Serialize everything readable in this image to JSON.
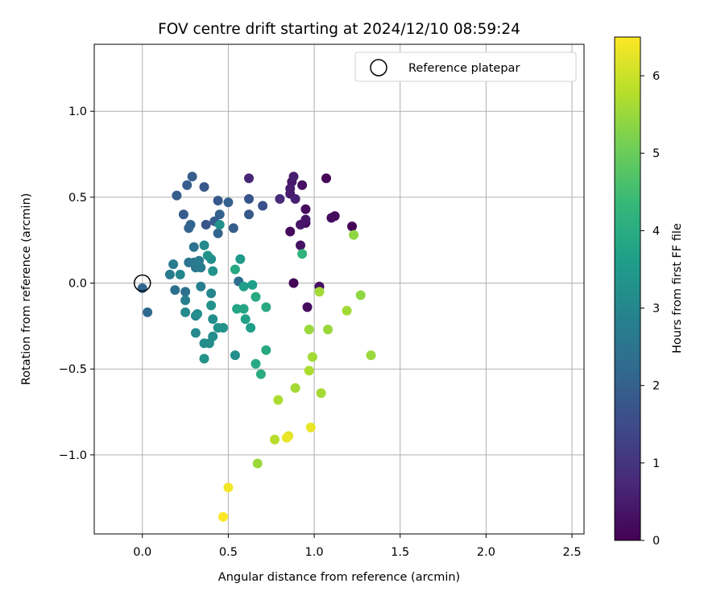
{
  "chart_data": {
    "type": "scatter",
    "title": "FOV centre drift starting at 2024/12/10 08:59:24",
    "xlabel": "Angular distance from reference (arcmin)",
    "ylabel": "Rotation from reference (arcmin)",
    "xlim": [
      -0.28,
      2.57
    ],
    "ylim": [
      -1.46,
      1.39
    ],
    "xticks": [
      0.0,
      0.5,
      1.0,
      1.5,
      2.0,
      2.5
    ],
    "yticks": [
      -1.0,
      -0.5,
      0.0,
      0.5,
      1.0
    ],
    "xtick_labels": [
      "0.0",
      "0.5",
      "1.0",
      "1.5",
      "2.0",
      "2.5"
    ],
    "ytick_labels": [
      "−1.0",
      "−0.5",
      "0.0",
      "0.5",
      "1.0"
    ],
    "grid": true,
    "legend": {
      "position": "top-right",
      "label": "Reference platepar",
      "marker": "open-circle"
    },
    "reference_point": {
      "x": 0.0,
      "y": 0.0
    },
    "colorbar": {
      "label": "Hours from first FF file",
      "colormap": "viridis",
      "range": [
        0,
        6.5
      ],
      "ticks": [
        0,
        1,
        2,
        3,
        4,
        5,
        6
      ],
      "tick_labels": [
        "0",
        "1",
        "2",
        "3",
        "4",
        "5",
        "6"
      ]
    },
    "points": [
      {
        "x": 1.07,
        "y": 0.61,
        "t": 0.1
      },
      {
        "x": 0.87,
        "y": 0.59,
        "t": 0.4
      },
      {
        "x": 0.86,
        "y": 0.52,
        "t": 0.5
      },
      {
        "x": 0.62,
        "y": 0.61,
        "t": 0.7
      },
      {
        "x": 0.88,
        "y": 0.62,
        "t": 0.5
      },
      {
        "x": 0.93,
        "y": 0.57,
        "t": 0.3
      },
      {
        "x": 0.86,
        "y": 0.55,
        "t": 0.5
      },
      {
        "x": 0.8,
        "y": 0.49,
        "t": 0.8
      },
      {
        "x": 0.89,
        "y": 0.49,
        "t": 0.6
      },
      {
        "x": 0.95,
        "y": 0.43,
        "t": 0.2
      },
      {
        "x": 0.92,
        "y": 0.34,
        "t": 0.4
      },
      {
        "x": 0.95,
        "y": 0.37,
        "t": 0.4
      },
      {
        "x": 0.95,
        "y": 0.35,
        "t": 0.1
      },
      {
        "x": 1.1,
        "y": 0.38,
        "t": 0.2
      },
      {
        "x": 1.12,
        "y": 0.39,
        "t": 0.2
      },
      {
        "x": 1.22,
        "y": 0.33,
        "t": 0.1
      },
      {
        "x": 0.86,
        "y": 0.3,
        "t": 0.2
      },
      {
        "x": 0.92,
        "y": 0.22,
        "t": 0.3
      },
      {
        "x": 0.88,
        "y": 0.0,
        "t": 0.05
      },
      {
        "x": 1.03,
        "y": -0.02,
        "t": 0.3
      },
      {
        "x": 0.96,
        "y": -0.14,
        "t": 0.2
      },
      {
        "x": 0.7,
        "y": 0.45,
        "t": 1.6
      },
      {
        "x": 0.62,
        "y": 0.49,
        "t": 1.7
      },
      {
        "x": 0.62,
        "y": 0.4,
        "t": 1.8
      },
      {
        "x": 0.53,
        "y": 0.32,
        "t": 1.9
      },
      {
        "x": 0.5,
        "y": 0.47,
        "t": 2.0
      },
      {
        "x": 0.44,
        "y": 0.48,
        "t": 1.8
      },
      {
        "x": 0.36,
        "y": 0.56,
        "t": 1.8
      },
      {
        "x": 0.29,
        "y": 0.62,
        "t": 1.9
      },
      {
        "x": 0.26,
        "y": 0.57,
        "t": 1.9
      },
      {
        "x": 0.2,
        "y": 0.51,
        "t": 1.9
      },
      {
        "x": 0.24,
        "y": 0.4,
        "t": 1.9
      },
      {
        "x": 0.37,
        "y": 0.34,
        "t": 1.7
      },
      {
        "x": 0.42,
        "y": 0.36,
        "t": 1.9
      },
      {
        "x": 0.45,
        "y": 0.4,
        "t": 2.0
      },
      {
        "x": 0.44,
        "y": 0.29,
        "t": 2.1
      },
      {
        "x": 0.27,
        "y": 0.32,
        "t": 2.1
      },
      {
        "x": 0.28,
        "y": 0.34,
        "t": 2.1
      },
      {
        "x": 0.0,
        "y": -0.03,
        "t": 2.1
      },
      {
        "x": 0.03,
        "y": -0.17,
        "t": 2.2
      },
      {
        "x": 0.45,
        "y": 0.34,
        "t": 3.3
      },
      {
        "x": 0.3,
        "y": 0.21,
        "t": 2.5
      },
      {
        "x": 0.36,
        "y": 0.22,
        "t": 3.1
      },
      {
        "x": 0.38,
        "y": 0.16,
        "t": 3.3
      },
      {
        "x": 0.4,
        "y": 0.14,
        "t": 3.2
      },
      {
        "x": 0.3,
        "y": 0.12,
        "t": 2.6
      },
      {
        "x": 0.27,
        "y": 0.12,
        "t": 2.5
      },
      {
        "x": 0.33,
        "y": 0.13,
        "t": 2.7
      },
      {
        "x": 0.18,
        "y": 0.11,
        "t": 2.7
      },
      {
        "x": 0.31,
        "y": 0.09,
        "t": 2.6
      },
      {
        "x": 0.34,
        "y": 0.09,
        "t": 2.7
      },
      {
        "x": 0.16,
        "y": 0.05,
        "t": 2.7
      },
      {
        "x": 0.22,
        "y": 0.05,
        "t": 3.0
      },
      {
        "x": 0.41,
        "y": 0.07,
        "t": 3.3
      },
      {
        "x": 0.19,
        "y": -0.04,
        "t": 2.4
      },
      {
        "x": 0.25,
        "y": -0.05,
        "t": 2.4
      },
      {
        "x": 0.34,
        "y": -0.02,
        "t": 2.8
      },
      {
        "x": 0.4,
        "y": -0.06,
        "t": 3.0
      },
      {
        "x": 0.25,
        "y": -0.1,
        "t": 2.8
      },
      {
        "x": 0.4,
        "y": -0.13,
        "t": 3.3
      },
      {
        "x": 0.25,
        "y": -0.17,
        "t": 3.1
      },
      {
        "x": 0.31,
        "y": -0.19,
        "t": 3.0
      },
      {
        "x": 0.32,
        "y": -0.18,
        "t": 3.2
      },
      {
        "x": 0.41,
        "y": -0.21,
        "t": 3.2
      },
      {
        "x": 0.44,
        "y": -0.26,
        "t": 3.3
      },
      {
        "x": 0.47,
        "y": -0.26,
        "t": 3.3
      },
      {
        "x": 0.31,
        "y": -0.29,
        "t": 3.1
      },
      {
        "x": 0.41,
        "y": -0.31,
        "t": 3.2
      },
      {
        "x": 0.36,
        "y": -0.35,
        "t": 3.2
      },
      {
        "x": 0.39,
        "y": -0.35,
        "t": 3.2
      },
      {
        "x": 0.36,
        "y": -0.44,
        "t": 3.3
      },
      {
        "x": 0.54,
        "y": -0.42,
        "t": 3.2
      },
      {
        "x": 0.57,
        "y": 0.14,
        "t": 3.5
      },
      {
        "x": 0.54,
        "y": 0.08,
        "t": 3.9
      },
      {
        "x": 0.56,
        "y": 0.01,
        "t": 2.3
      },
      {
        "x": 0.59,
        "y": -0.02,
        "t": 3.6
      },
      {
        "x": 0.64,
        "y": -0.01,
        "t": 3.6
      },
      {
        "x": 0.66,
        "y": -0.08,
        "t": 3.9
      },
      {
        "x": 0.55,
        "y": -0.15,
        "t": 3.8
      },
      {
        "x": 0.59,
        "y": -0.15,
        "t": 3.8
      },
      {
        "x": 0.72,
        "y": -0.14,
        "t": 3.9
      },
      {
        "x": 0.6,
        "y": -0.21,
        "t": 3.7
      },
      {
        "x": 0.63,
        "y": -0.26,
        "t": 3.6
      },
      {
        "x": 0.72,
        "y": -0.39,
        "t": 3.9
      },
      {
        "x": 0.66,
        "y": -0.47,
        "t": 3.9
      },
      {
        "x": 0.69,
        "y": -0.53,
        "t": 4.0
      },
      {
        "x": 0.93,
        "y": 0.17,
        "t": 4.2
      },
      {
        "x": 1.23,
        "y": 0.28,
        "t": 5.4
      },
      {
        "x": 1.03,
        "y": -0.05,
        "t": 5.6
      },
      {
        "x": 1.27,
        "y": -0.07,
        "t": 5.4
      },
      {
        "x": 1.19,
        "y": -0.16,
        "t": 5.6
      },
      {
        "x": 0.97,
        "y": -0.27,
        "t": 5.5
      },
      {
        "x": 1.08,
        "y": -0.27,
        "t": 5.5
      },
      {
        "x": 1.33,
        "y": -0.42,
        "t": 5.5
      },
      {
        "x": 0.99,
        "y": -0.43,
        "t": 5.6
      },
      {
        "x": 0.97,
        "y": -0.51,
        "t": 5.7
      },
      {
        "x": 0.89,
        "y": -0.61,
        "t": 5.6
      },
      {
        "x": 1.04,
        "y": -0.64,
        "t": 5.6
      },
      {
        "x": 0.79,
        "y": -0.68,
        "t": 5.7
      },
      {
        "x": 0.98,
        "y": -0.84,
        "t": 6.3
      },
      {
        "x": 0.84,
        "y": -0.9,
        "t": 6.3
      },
      {
        "x": 0.85,
        "y": -0.89,
        "t": 6.2
      },
      {
        "x": 0.77,
        "y": -0.91,
        "t": 5.8
      },
      {
        "x": 0.67,
        "y": -1.05,
        "t": 5.5
      },
      {
        "x": 0.5,
        "y": -1.19,
        "t": 6.4
      },
      {
        "x": 0.47,
        "y": -1.36,
        "t": 6.5
      }
    ]
  },
  "colors": {
    "viridis": [
      "#440154",
      "#482878",
      "#3e4989",
      "#31688e",
      "#26828e",
      "#1f9e89",
      "#35b779",
      "#6ece58",
      "#b5de2b",
      "#fde725"
    ],
    "grid": "#b0b0b0",
    "legend_border": "#d0d0d0"
  }
}
